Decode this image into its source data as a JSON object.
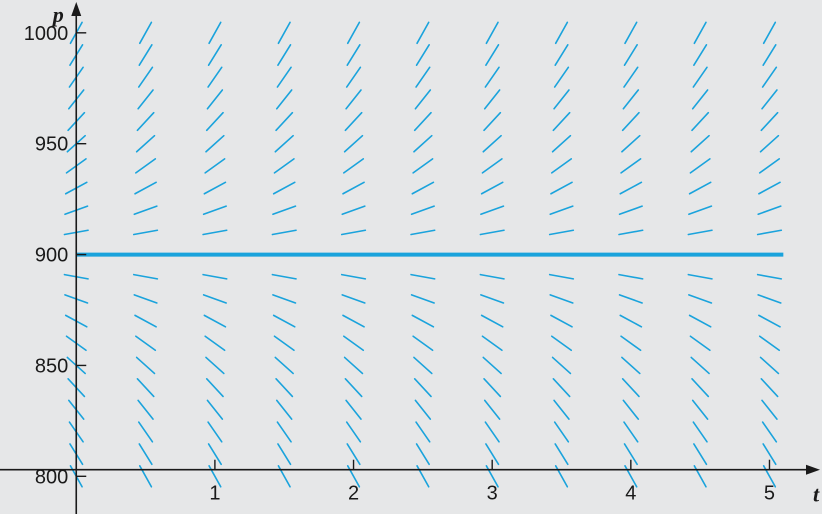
{
  "chart_data": {
    "type": "direction-field",
    "title": "",
    "xlabel": "t",
    "ylabel": "p",
    "xlim": [
      -0.55,
      5.35
    ],
    "ylim": [
      783,
      1013
    ],
    "x_ticks": [
      1,
      2,
      3,
      4,
      5
    ],
    "x_tick_labels": [
      "1",
      "2",
      "3",
      "4",
      "5"
    ],
    "y_ticks": [
      800,
      850,
      900,
      950,
      1000
    ],
    "y_tick_labels": [
      "800",
      "850",
      "900",
      "950",
      "1000"
    ],
    "slope_grid": {
      "t": [
        0,
        0.5,
        1,
        1.5,
        2,
        2.5,
        3,
        3.5,
        4,
        4.5,
        5
      ],
      "p": [
        800,
        810,
        820,
        830,
        840,
        850,
        860,
        870,
        880,
        890,
        910,
        920,
        930,
        940,
        950,
        960,
        970,
        980,
        990,
        1000
      ]
    },
    "equilibrium": {
      "p": 900,
      "t_range": [
        0,
        5.1
      ]
    },
    "grid": false,
    "colors": {
      "background": "#e6e7e8",
      "segments": "#1aa3dc",
      "equilibrium": "#1aa3dc",
      "axes": "#1a1a1a"
    }
  }
}
